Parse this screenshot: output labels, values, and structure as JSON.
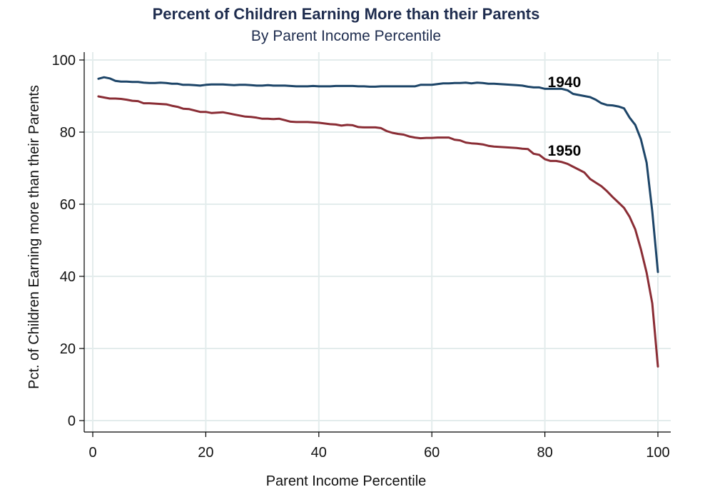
{
  "chart_data": {
    "type": "line",
    "title": "Percent of Children Earning More than their Parents",
    "subtitle": "By Parent Income Percentile",
    "xlabel": "Parent Income Percentile",
    "ylabel": "Pct. of Children Earning more than their Parents",
    "xlim": [
      0,
      100
    ],
    "ylim": [
      0,
      100
    ],
    "xticks": [
      0,
      20,
      40,
      60,
      80,
      100
    ],
    "yticks": [
      0,
      20,
      40,
      60,
      80,
      100
    ],
    "grid": true,
    "colors": {
      "title": "#1f2d4f",
      "series_1940": "#1d4568",
      "series_1950": "#8a2d35",
      "grid": "#e3ecec"
    },
    "annotations": [
      {
        "text": "1940",
        "x": 80.5,
        "y": 92.5,
        "series": "1940"
      },
      {
        "text": "1950",
        "x": 80.5,
        "y": 73.5,
        "series": "1950"
      }
    ],
    "series": [
      {
        "name": "1940",
        "x": [
          1,
          2,
          3,
          4,
          5,
          6,
          7,
          8,
          9,
          10,
          11,
          12,
          13,
          14,
          15,
          16,
          17,
          18,
          19,
          20,
          21,
          22,
          23,
          24,
          25,
          26,
          27,
          28,
          29,
          30,
          31,
          32,
          33,
          34,
          35,
          36,
          37,
          38,
          39,
          40,
          41,
          42,
          43,
          44,
          45,
          46,
          47,
          48,
          49,
          50,
          51,
          52,
          53,
          54,
          55,
          56,
          57,
          58,
          59,
          60,
          61,
          62,
          63,
          64,
          65,
          66,
          67,
          68,
          69,
          70,
          71,
          72,
          73,
          74,
          75,
          76,
          77,
          78,
          79,
          80,
          81,
          82,
          83,
          84,
          85,
          86,
          87,
          88,
          89,
          90,
          91,
          92,
          93,
          94,
          95,
          96,
          97,
          98,
          99,
          100
        ],
        "values": [
          94.8,
          95.2,
          94.9,
          94.2,
          94.0,
          94.0,
          93.9,
          93.9,
          93.7,
          93.6,
          93.6,
          93.7,
          93.6,
          93.4,
          93.4,
          93.1,
          93.1,
          93.0,
          92.9,
          93.1,
          93.2,
          93.2,
          93.2,
          93.1,
          93.0,
          93.1,
          93.1,
          93.0,
          92.9,
          92.9,
          93.0,
          92.9,
          92.9,
          92.9,
          92.8,
          92.7,
          92.7,
          92.7,
          92.8,
          92.7,
          92.7,
          92.7,
          92.8,
          92.8,
          92.8,
          92.8,
          92.7,
          92.7,
          92.6,
          92.6,
          92.7,
          92.7,
          92.7,
          92.7,
          92.7,
          92.7,
          92.7,
          93.1,
          93.1,
          93.1,
          93.3,
          93.5,
          93.5,
          93.6,
          93.6,
          93.7,
          93.5,
          93.7,
          93.6,
          93.4,
          93.4,
          93.3,
          93.2,
          93.1,
          93.0,
          92.9,
          92.6,
          92.4,
          92.4,
          92.0,
          92.0,
          92.0,
          92.0,
          91.6,
          90.6,
          90.3,
          90.0,
          89.7,
          89.0,
          88.0,
          87.5,
          87.4,
          87.1,
          86.6,
          84.0,
          82.0,
          78.0,
          71.5,
          58.0,
          41.2
        ]
      },
      {
        "name": "1950",
        "x": [
          1,
          2,
          3,
          4,
          5,
          6,
          7,
          8,
          9,
          10,
          11,
          12,
          13,
          14,
          15,
          16,
          17,
          18,
          19,
          20,
          21,
          22,
          23,
          24,
          25,
          26,
          27,
          28,
          29,
          30,
          31,
          32,
          33,
          34,
          35,
          36,
          37,
          38,
          39,
          40,
          41,
          42,
          43,
          44,
          45,
          46,
          47,
          48,
          49,
          50,
          51,
          52,
          53,
          54,
          55,
          56,
          57,
          58,
          59,
          60,
          61,
          62,
          63,
          64,
          65,
          66,
          67,
          68,
          69,
          70,
          71,
          72,
          73,
          74,
          75,
          76,
          77,
          78,
          79,
          80,
          81,
          82,
          83,
          84,
          85,
          86,
          87,
          88,
          89,
          90,
          91,
          92,
          93,
          94,
          95,
          96,
          97,
          98,
          99,
          100
        ],
        "values": [
          89.9,
          89.6,
          89.3,
          89.3,
          89.2,
          89.0,
          88.7,
          88.6,
          88.0,
          88.0,
          87.9,
          87.8,
          87.7,
          87.3,
          87.0,
          86.5,
          86.4,
          86.0,
          85.6,
          85.6,
          85.3,
          85.4,
          85.5,
          85.2,
          84.9,
          84.6,
          84.3,
          84.2,
          84.0,
          83.7,
          83.7,
          83.6,
          83.7,
          83.3,
          82.9,
          82.8,
          82.8,
          82.8,
          82.7,
          82.6,
          82.4,
          82.2,
          82.1,
          81.8,
          82.0,
          81.9,
          81.4,
          81.3,
          81.3,
          81.3,
          81.1,
          80.3,
          79.8,
          79.5,
          79.3,
          78.8,
          78.5,
          78.3,
          78.4,
          78.4,
          78.5,
          78.5,
          78.5,
          77.9,
          77.7,
          77.1,
          76.9,
          76.8,
          76.6,
          76.2,
          76.0,
          75.9,
          75.8,
          75.7,
          75.6,
          75.4,
          75.3,
          74.0,
          73.7,
          72.5,
          72.0,
          72.0,
          71.7,
          71.2,
          70.4,
          69.6,
          68.8,
          67.0,
          66.0,
          65.0,
          63.6,
          62.0,
          60.5,
          59.0,
          56.5,
          53.0,
          47.5,
          41.0,
          32.5,
          15.0
        ]
      }
    ]
  }
}
